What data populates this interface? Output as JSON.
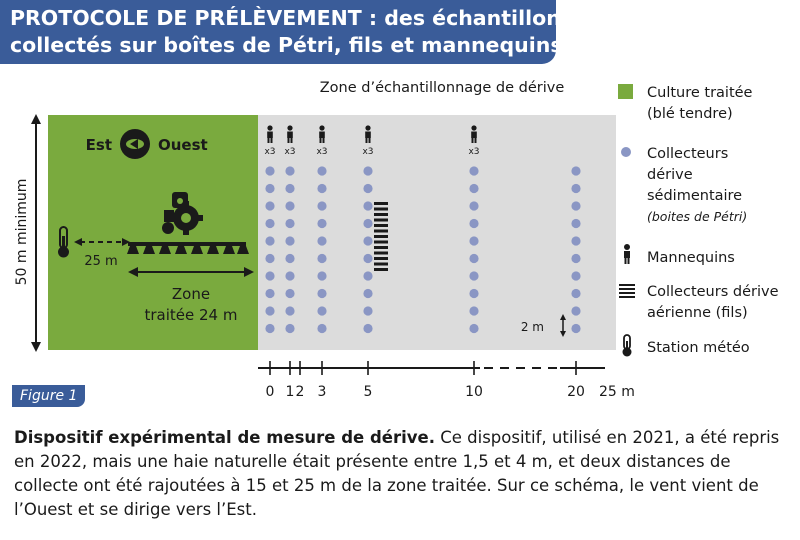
{
  "header": {
    "title_line1": "PROTOCOLE DE PRÉLÈVEMENT : des échantillons",
    "title_line2": "collectés sur boîtes de Pétri,  fils et mannequins"
  },
  "diagram": {
    "drift_zone_label": "Zone d’échantillonnage de dérive",
    "vertical_label": "50 m minimum",
    "compass_east": "Est",
    "compass_west": "Ouest",
    "distance_25m": "25 m",
    "treated_zone_line1": "Zone",
    "treated_zone_line2": "traitée 24 m",
    "spacing_label": "2 m",
    "mannequin_multiplier": "x3",
    "scale_ticks": [
      {
        "label": "0",
        "d": 0
      },
      {
        "label": "1",
        "d": 1
      },
      {
        "label": "2",
        "d": 2
      },
      {
        "label": "3",
        "d": 3
      },
      {
        "label": "5",
        "d": 5
      },
      {
        "label": "10",
        "d": 10
      },
      {
        "label": "20",
        "d": 20
      },
      {
        "label": "25 m",
        "d": 25
      }
    ],
    "mannequin_distances": [
      0,
      1,
      3,
      5,
      10
    ],
    "petri_column_distances": [
      0,
      1,
      3,
      5,
      10,
      20
    ],
    "petri_rows": 10,
    "wire_collector_distance": 5,
    "colors": {
      "treated_crop": "#7aaa3e",
      "sampling_zone": "#dcdcdc",
      "petri_dot": "#8a96c4",
      "header": "#3a5c99"
    }
  },
  "legend": {
    "items": [
      {
        "icon": "green-square-icon",
        "lines": [
          "Culture traitée",
          "(blé tendre)"
        ]
      },
      {
        "icon": "petri-dot-icon",
        "lines": [
          "Collecteurs",
          "dérive",
          "sédimentaire"
        ],
        "note": "(boites de Pétri)"
      },
      {
        "icon": "mannequin-icon",
        "lines": [
          "Mannequins"
        ]
      },
      {
        "icon": "wires-icon",
        "lines": [
          "Collecteurs dérive",
          "aérienne (fils)"
        ]
      },
      {
        "icon": "thermometer-icon",
        "lines": [
          "Station météo"
        ]
      }
    ]
  },
  "figure_tag": "Figure 1",
  "caption": {
    "bold": "Dispositif expérimental de mesure de dérive.",
    "text": " Ce dispositif, utilisé en 2021, a été repris en 2022, mais une haie naturelle était présente entre 1,5 et 4 m, et deux distances de collecte ont été rajoutées à 15 et 25 m de la zone traitée. Sur ce schéma, le vent vient de l’Ouest et se dirige vers l’Est."
  }
}
